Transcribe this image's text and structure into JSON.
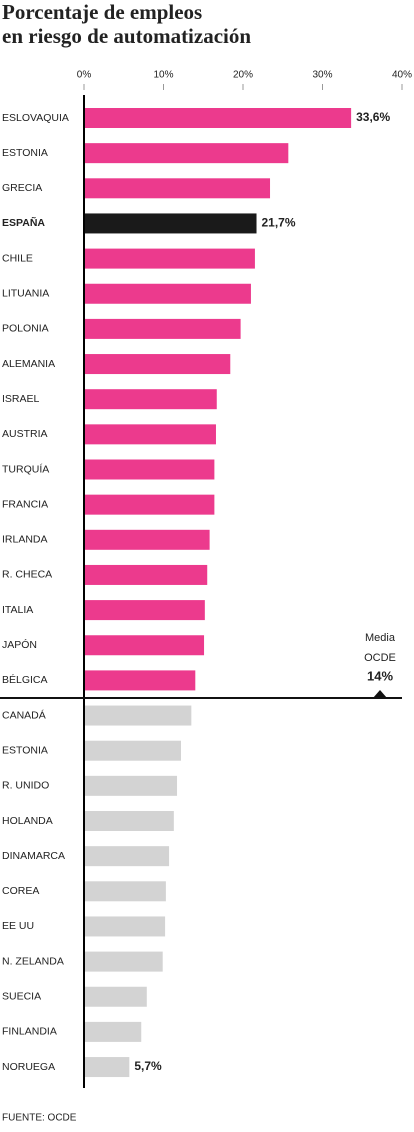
{
  "chart_data": {
    "type": "hbar",
    "title": [
      "Porcentaje de empleos",
      "en riesgo de automatización"
    ],
    "categories": [
      "ESLOVAQUIA",
      "ESTONIA",
      "GRECIA",
      "ESPAÑA",
      "CHILE",
      "LITUANIA",
      "POLONIA",
      "ALEMANIA",
      "ISRAEL",
      "AUSTRIA",
      "TURQUÍA",
      "FRANCIA",
      "IRLANDA",
      "R. CHECA",
      "ITALIA",
      "JAPÓN",
      "BÉLGICA",
      "CANADÁ",
      "ESTONIA",
      "R. UNIDO",
      "HOLANDA",
      "DINAMARCA",
      "COREA",
      "EE UU",
      "N. ZELANDA",
      "SUECIA",
      "FINLANDIA",
      "NORUEGA"
    ],
    "values": [
      33.6,
      25.7,
      23.4,
      21.7,
      21.5,
      21.0,
      19.7,
      18.4,
      16.7,
      16.6,
      16.4,
      16.4,
      15.8,
      15.5,
      15.2,
      15.1,
      14.0,
      13.5,
      12.2,
      11.7,
      11.3,
      10.7,
      10.3,
      10.2,
      9.9,
      7.9,
      7.2,
      5.7
    ],
    "value_labels": [
      "33,6%",
      null,
      null,
      "21,7%",
      null,
      null,
      null,
      null,
      null,
      null,
      null,
      null,
      null,
      null,
      null,
      null,
      null,
      null,
      null,
      null,
      null,
      null,
      null,
      null,
      null,
      null,
      null,
      "5,7%"
    ],
    "colors": [
      "#ec3a8d",
      "#ec3a8d",
      "#ec3a8d",
      "#1a1a1a",
      "#ec3a8d",
      "#ec3a8d",
      "#ec3a8d",
      "#ec3a8d",
      "#ec3a8d",
      "#ec3a8d",
      "#ec3a8d",
      "#ec3a8d",
      "#ec3a8d",
      "#ec3a8d",
      "#ec3a8d",
      "#ec3a8d",
      "#ec3a8d",
      "#d3d3d3",
      "#d3d3d3",
      "#d3d3d3",
      "#d3d3d3",
      "#d3d3d3",
      "#d3d3d3",
      "#d3d3d3",
      "#d3d3d3",
      "#d3d3d3",
      "#d3d3d3",
      "#d3d3d3"
    ],
    "highlight_color": "#1a1a1a",
    "xlim": [
      0,
      40
    ],
    "xticks": [
      {
        "value": 0,
        "label": "0%"
      },
      {
        "value": 10,
        "label": "10%"
      },
      {
        "value": 20,
        "label": "20%"
      },
      {
        "value": 30,
        "label": "30%"
      },
      {
        "value": 40,
        "label": "40%"
      }
    ],
    "mean": {
      "label": [
        "Media",
        "OCDE"
      ],
      "value": 14,
      "value_label": "14%"
    },
    "source": "FUENTE: OCDE"
  }
}
